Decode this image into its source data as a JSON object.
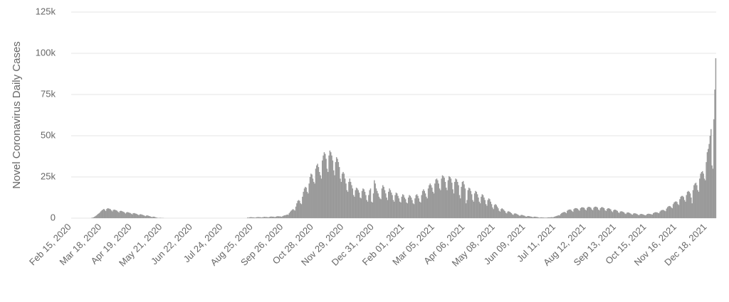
{
  "chart_data": {
    "type": "bar",
    "ylabel": "Novel Coronavirus Daily Cases",
    "color": "#999999",
    "grid": true,
    "ylim": [
      0,
      125000
    ],
    "yticks": [
      0,
      {
        "value": 25000,
        "label": "25k"
      },
      {
        "value": 50000,
        "label": "50k"
      },
      {
        "value": 75000,
        "label": "75k"
      },
      {
        "value": 100000,
        "label": "100k"
      },
      {
        "value": 125000,
        "label": "125k"
      }
    ],
    "categories": [
      "Feb 15, 2020",
      null,
      null,
      null,
      null,
      null,
      null,
      null,
      null,
      null,
      null,
      null,
      null,
      null,
      null,
      null,
      null,
      null,
      null,
      null,
      null,
      null,
      null,
      null,
      null,
      null,
      null,
      null,
      null,
      null,
      null,
      null,
      "Mar 18, 2020",
      null,
      null,
      null,
      null,
      null,
      null,
      null,
      null,
      null,
      null,
      null,
      null,
      null,
      null,
      null,
      null,
      null,
      null,
      null,
      null,
      null,
      null,
      null,
      null,
      null,
      null,
      null,
      null,
      null,
      null,
      null,
      "Apr 19, 2020",
      null,
      null,
      null,
      null,
      null,
      null,
      null,
      null,
      null,
      null,
      null,
      null,
      null,
      null,
      null,
      null,
      null,
      null,
      null,
      null,
      null,
      null,
      null,
      null,
      null,
      null,
      null,
      null,
      null,
      null,
      null,
      "May 21, 2020",
      null,
      null,
      null,
      null,
      null,
      null,
      null,
      null,
      null,
      null,
      null,
      null,
      null,
      null,
      null,
      null,
      null,
      null,
      null,
      null,
      null,
      null,
      null,
      null,
      null,
      null,
      null,
      null,
      null,
      null,
      null,
      "Jun 22, 2020",
      null,
      null,
      null,
      null,
      null,
      null,
      null,
      null,
      null,
      null,
      null,
      null,
      null,
      null,
      null,
      null,
      null,
      null,
      null,
      null,
      null,
      null,
      null,
      null,
      null,
      null,
      null,
      null,
      null,
      null,
      null,
      "Jul 24, 2020",
      null,
      null,
      null,
      null,
      null,
      null,
      null,
      null,
      null,
      null,
      null,
      null,
      null,
      null,
      null,
      null,
      null,
      null,
      null,
      null,
      null,
      null,
      null,
      null,
      null,
      null,
      null,
      null,
      null,
      null,
      null,
      "Aug 25, 2020",
      null,
      null,
      null,
      null,
      null,
      null,
      null,
      null,
      null,
      null,
      null,
      null,
      null,
      null,
      null,
      null,
      null,
      null,
      null,
      null,
      null,
      null,
      null,
      null,
      null,
      null,
      null,
      null,
      null,
      null,
      null,
      "Sep 26, 2020",
      null,
      null,
      null,
      null,
      null,
      null,
      null,
      null,
      null,
      null,
      null,
      null,
      null,
      null,
      null,
      null,
      null,
      null,
      null,
      null,
      null,
      null,
      null,
      null,
      null,
      null,
      null,
      null,
      null,
      null,
      null,
      "Oct 28, 2020",
      null,
      null,
      null,
      null,
      null,
      null,
      null,
      null,
      null,
      null,
      null,
      null,
      null,
      null,
      null,
      null,
      null,
      null,
      null,
      null,
      null,
      null,
      null,
      null,
      null,
      null,
      null,
      null,
      null,
      null,
      null,
      "Nov 29, 2020",
      null,
      null,
      null,
      null,
      null,
      null,
      null,
      null,
      null,
      null,
      null,
      null,
      null,
      null,
      null,
      null,
      null,
      null,
      null,
      null,
      null,
      null,
      null,
      null,
      null,
      null,
      null,
      null,
      null,
      null,
      null,
      "Dec 31, 2020",
      null,
      null,
      null,
      null,
      null,
      null,
      null,
      null,
      null,
      null,
      null,
      null,
      null,
      null,
      null,
      null,
      null,
      null,
      null,
      null,
      null,
      null,
      null,
      null,
      null,
      null,
      null,
      null,
      null,
      null,
      null,
      "Feb 01, 2021",
      null,
      null,
      null,
      null,
      null,
      null,
      null,
      null,
      null,
      null,
      null,
      null,
      null,
      null,
      null,
      null,
      null,
      null,
      null,
      null,
      null,
      null,
      null,
      null,
      null,
      null,
      null,
      null,
      null,
      null,
      null,
      "Mar 05, 2021",
      null,
      null,
      null,
      null,
      null,
      null,
      null,
      null,
      null,
      null,
      null,
      null,
      null,
      null,
      null,
      null,
      null,
      null,
      null,
      null,
      null,
      null,
      null,
      null,
      null,
      null,
      null,
      null,
      null,
      null,
      null,
      "Apr 06, 2021",
      null,
      null,
      null,
      null,
      null,
      null,
      null,
      null,
      null,
      null,
      null,
      null,
      null,
      null,
      null,
      null,
      null,
      null,
      null,
      null,
      null,
      null,
      null,
      null,
      null,
      null,
      null,
      null,
      null,
      null,
      null,
      "May 08, 2021",
      null,
      null,
      null,
      null,
      null,
      null,
      null,
      null,
      null,
      null,
      null,
      null,
      null,
      null,
      null,
      null,
      null,
      null,
      null,
      null,
      null,
      null,
      null,
      null,
      null,
      null,
      null,
      null,
      null,
      null,
      null,
      "Jun 09, 2021",
      null,
      null,
      null,
      null,
      null,
      null,
      null,
      null,
      null,
      null,
      null,
      null,
      null,
      null,
      null,
      null,
      null,
      null,
      null,
      null,
      null,
      null,
      null,
      null,
      null,
      null,
      null,
      null,
      null,
      null,
      null,
      "Jul 11, 2021",
      null,
      null,
      null,
      null,
      null,
      null,
      null,
      null,
      null,
      null,
      null,
      null,
      null,
      null,
      null,
      null,
      null,
      null,
      null,
      null,
      null,
      null,
      null,
      null,
      null,
      null,
      null,
      null,
      null,
      null,
      null,
      "Aug 12, 2021",
      null,
      null,
      null,
      null,
      null,
      null,
      null,
      null,
      null,
      null,
      null,
      null,
      null,
      null,
      null,
      null,
      null,
      null,
      null,
      null,
      null,
      null,
      null,
      null,
      null,
      null,
      null,
      null,
      null,
      null,
      null,
      "Sep 13, 2021",
      null,
      null,
      null,
      null,
      null,
      null,
      null,
      null,
      null,
      null,
      null,
      null,
      null,
      null,
      null,
      null,
      null,
      null,
      null,
      null,
      null,
      null,
      null,
      null,
      null,
      null,
      null,
      null,
      null,
      null,
      null,
      "Oct 15, 2021",
      null,
      null,
      null,
      null,
      null,
      null,
      null,
      null,
      null,
      null,
      null,
      null,
      null,
      null,
      null,
      null,
      null,
      null,
      null,
      null,
      null,
      null,
      null,
      null,
      null,
      null,
      null,
      null,
      null,
      null,
      null,
      "Nov 16, 2021",
      null,
      null,
      null,
      null,
      null,
      null,
      null,
      null,
      null,
      null,
      null,
      null,
      null,
      null,
      null,
      null,
      null,
      null,
      null,
      null,
      null,
      null,
      null,
      null,
      null,
      null,
      null,
      null,
      null,
      null,
      null,
      "Dec 18, 2021",
      null,
      null,
      null,
      null,
      null,
      null,
      null,
      null,
      null
    ],
    "values": [
      0,
      0,
      0,
      0,
      0,
      0,
      0,
      0,
      0,
      0,
      0,
      0,
      0,
      0,
      0,
      0,
      0,
      0,
      0,
      0,
      0,
      200,
      300,
      500,
      800,
      1200,
      1600,
      2100,
      2600,
      3000,
      3600,
      4200,
      4800,
      5200,
      5600,
      5000,
      4300,
      5500,
      6000,
      5900,
      5700,
      5400,
      4700,
      4100,
      5000,
      5200,
      5000,
      4800,
      4500,
      3900,
      3400,
      4300,
      4500,
      4300,
      4000,
      3800,
      3300,
      2800,
      3500,
      3700,
      3500,
      3300,
      3100,
      2700,
      2300,
      3000,
      3100,
      2900,
      2700,
      2500,
      2100,
      1800,
      2300,
      2400,
      2200,
      2000,
      1800,
      1500,
      1200,
      1600,
      1700,
      1500,
      1300,
      1100,
      800,
      600,
      900,
      900,
      700,
      500,
      300,
      200,
      100,
      200,
      200,
      100,
      100,
      100,
      0,
      0,
      0,
      0,
      0,
      0,
      0,
      0,
      0,
      0,
      0,
      0,
      0,
      0,
      0,
      0,
      0,
      0,
      0,
      0,
      0,
      0,
      0,
      0,
      0,
      0,
      0,
      0,
      0,
      0,
      0,
      0,
      0,
      0,
      0,
      0,
      0,
      0,
      0,
      0,
      0,
      0,
      0,
      0,
      0,
      0,
      0,
      0,
      0,
      0,
      0,
      0,
      0,
      0,
      0,
      0,
      0,
      0,
      0,
      0,
      0,
      0,
      0,
      0,
      0,
      0,
      0,
      0,
      0,
      0,
      0,
      0,
      0,
      0,
      0,
      0,
      0,
      0,
      0,
      0,
      0,
      0,
      0,
      0,
      0,
      0,
      0,
      0,
      400,
      300,
      500,
      600,
      600,
      500,
      500,
      400,
      300,
      500,
      600,
      700,
      600,
      600,
      500,
      400,
      600,
      700,
      800,
      700,
      700,
      600,
      500,
      700,
      900,
      1000,
      900,
      900,
      800,
      600,
      900,
      1100,
      1200,
      1100,
      1100,
      1000,
      800,
      1200,
      1500,
      1700,
      1800,
      2000,
      2200,
      2000,
      3000,
      3800,
      4500,
      5000,
      5500,
      5000,
      4600,
      7000,
      9000,
      10500,
      11000,
      10500,
      9000,
      8500,
      13000,
      16000,
      18000,
      19000,
      18500,
      16000,
      15000,
      21000,
      25000,
      27000,
      26500,
      24000,
      22000,
      21000,
      30000,
      32000,
      33000,
      31000,
      28000,
      26000,
      24000,
      35000,
      38000,
      40000,
      39000,
      36000,
      30000,
      28000,
      38000,
      41000,
      40000,
      38000,
      35000,
      29000,
      26000,
      34000,
      37000,
      36000,
      34000,
      31000,
      24000,
      22000,
      27000,
      28000,
      27000,
      24000,
      21000,
      17000,
      16000,
      22000,
      24000,
      22000,
      20000,
      18000,
      14000,
      13000,
      17000,
      18500,
      18000,
      17000,
      15500,
      12500,
      12000,
      16500,
      18000,
      17500,
      16000,
      14000,
      11000,
      10000,
      14000,
      17000,
      18000,
      10000,
      9500,
      15000,
      23000,
      21000,
      18000,
      16500,
      15000,
      13000,
      12000,
      11500,
      18000,
      20000,
      19000,
      17000,
      15000,
      12500,
      11000,
      16000,
      18000,
      17000,
      15500,
      14000,
      11000,
      10000,
      14000,
      15500,
      15000,
      13500,
      12000,
      10000,
      9500,
      13000,
      14500,
      14000,
      12500,
      11500,
      9500,
      9000,
      12500,
      14000,
      13500,
      12500,
      11000,
      9000,
      8500,
      12000,
      14000,
      14500,
      13500,
      12000,
      10000,
      9500,
      14000,
      16500,
      17500,
      16500,
      15000,
      13000,
      12000,
      18000,
      20000,
      21000,
      20000,
      18500,
      16000,
      15000,
      21000,
      23500,
      24000,
      23000,
      21000,
      18000,
      17000,
      24000,
      26000,
      25500,
      24500,
      22000,
      18500,
      17000,
      23000,
      25500,
      25000,
      24000,
      21500,
      17500,
      15000,
      22000,
      24000,
      23500,
      22000,
      20000,
      14000,
      12000,
      19000,
      22000,
      22500,
      20500,
      18000,
      9000,
      11000,
      17000,
      18500,
      18000,
      16500,
      14500,
      11000,
      10000,
      15000,
      16500,
      16000,
      14500,
      12500,
      10000,
      9000,
      13000,
      14500,
      14000,
      12500,
      11000,
      8500,
      7500,
      11000,
      12000,
      11500,
      10000,
      8500,
      6500,
      5500,
      8000,
      8500,
      8000,
      7000,
      6000,
      4500,
      4000,
      5500,
      6000,
      5500,
      5000,
      4300,
      3300,
      2900,
      4000,
      4200,
      3900,
      3500,
      3000,
      2300,
      2000,
      2800,
      2900,
      2700,
      2400,
      2100,
      1600,
      1400,
      1900,
      2000,
      1800,
      1600,
      1400,
      1000,
      900,
      1300,
      1300,
      1200,
      1000,
      900,
      700,
      600,
      900,
      900,
      800,
      700,
      600,
      400,
      300,
      500,
      500,
      400,
      400,
      300,
      300,
      300,
      400,
      500,
      500,
      500,
      600,
      600,
      500,
      800,
      1000,
      1200,
      1400,
      1600,
      1800,
      1600,
      2500,
      3000,
      3400,
      3600,
      3800,
      3500,
      3000,
      4500,
      5000,
      5200,
      5300,
      5000,
      4300,
      3800,
      5500,
      6000,
      6100,
      6000,
      5700,
      5000,
      4500,
      6000,
      6500,
      6600,
      6500,
      6200,
      5200,
      4700,
      6200,
      6800,
      6900,
      6700,
      6300,
      5300,
      4800,
      6300,
      6900,
      7000,
      6800,
      6400,
      5200,
      4700,
      6000,
      6600,
      6700,
      6400,
      6000,
      4800,
      4300,
      5500,
      6000,
      6000,
      5700,
      5300,
      4200,
      3700,
      4800,
      5200,
      5100,
      4800,
      4400,
      3500,
      3100,
      4000,
      4200,
      4100,
      3800,
      3500,
      2800,
      2500,
      3300,
      3500,
      3400,
      3100,
      2800,
      2300,
      2100,
      2800,
      3000,
      2900,
      2700,
      2400,
      2000,
      1800,
      2400,
      2600,
      2500,
      2300,
      2100,
      1800,
      1700,
      2300,
      2600,
      2700,
      2600,
      2500,
      2300,
      2200,
      3000,
      3400,
      3600,
      3600,
      3500,
      3200,
      3000,
      4000,
      4600,
      4900,
      5000,
      4900,
      4500,
      4200,
      5800,
      6700,
      7200,
      7400,
      7200,
      6500,
      6000,
      8500,
      9500,
      10000,
      10200,
      9800,
      8500,
      8000,
      11500,
      13000,
      13500,
      13500,
      12800,
      11000,
      10000,
      14000,
      16000,
      16500,
      16000,
      15000,
      12500,
      9000,
      17000,
      20000,
      21000,
      21500,
      20000,
      17000,
      16000,
      24000,
      27000,
      28000,
      28500,
      27000,
      24000,
      23000,
      34000,
      40000,
      42000,
      45000,
      50000,
      54000,
      32000,
      30000,
      60000,
      78000,
      97000
    ]
  }
}
